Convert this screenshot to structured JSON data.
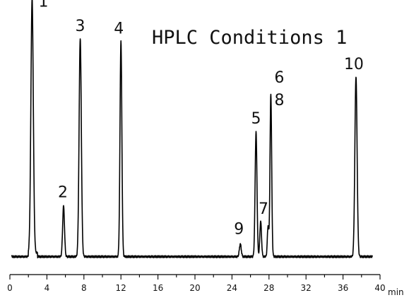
{
  "chart_data": {
    "type": "line",
    "title": "HPLC Conditions 1",
    "xlabel": "",
    "ylabel": "",
    "x_unit": "min",
    "xlim": [
      0,
      40
    ],
    "ylim": [
      0,
      100
    ],
    "x_ticks": [
      0,
      4,
      8,
      12,
      16,
      20,
      24,
      28,
      32,
      36,
      40
    ],
    "grid": false,
    "legend": "none",
    "baseline": 4,
    "peaks": [
      {
        "label": "1",
        "x": 2.4,
        "height": 100,
        "width": 0.13
      },
      {
        "label": "2",
        "x": 5.8,
        "height": 20,
        "width": 0.1
      },
      {
        "label": "3",
        "x": 7.6,
        "height": 86,
        "width": 0.12
      },
      {
        "label": "4",
        "x": 12.0,
        "height": 85,
        "width": 0.1
      },
      {
        "label": "9",
        "x": 24.9,
        "height": 5,
        "width": 0.1
      },
      {
        "label": "5",
        "x": 26.6,
        "height": 49,
        "width": 0.1
      },
      {
        "label": "7",
        "x": 27.1,
        "height": 14,
        "width": 0.09
      },
      {
        "label": "6",
        "x": 28.2,
        "height": 64,
        "width": 0.09
      },
      {
        "label": "8",
        "x": 27.9,
        "height": 12,
        "width": 0.08
      },
      {
        "label": "10",
        "x": 37.4,
        "height": 71,
        "width": 0.12
      }
    ]
  }
}
